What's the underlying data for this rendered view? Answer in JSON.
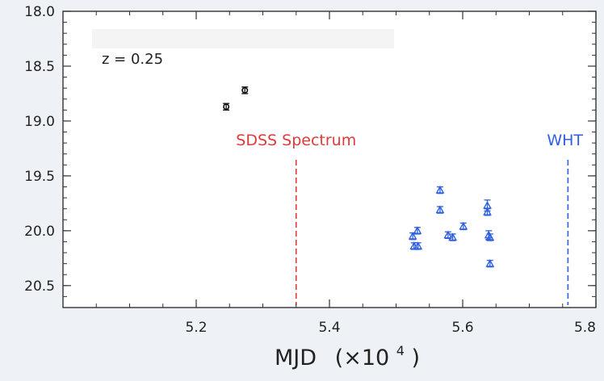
{
  "chart_data": {
    "type": "scatter",
    "title": "",
    "xlabel": "MJD (×10⁴)",
    "xlabel_main": "MJD",
    "xlabel_open": "(×10",
    "xlabel_exp": "4",
    "xlabel_close": ")",
    "ylabel": "",
    "xlim": [
      5.0,
      5.8
    ],
    "ylim": [
      20.7,
      18.0
    ],
    "y_inverted": true,
    "grid": false,
    "x_ticks": [
      5.2,
      5.4,
      5.6,
      5.8
    ],
    "x_tick_labels": [
      "5.2",
      "5.4",
      "5.6",
      "5.8"
    ],
    "y_ticks": [
      18.0,
      18.5,
      19.0,
      19.5,
      20.0,
      20.5
    ],
    "y_tick_labels": [
      "18.0",
      "18.5",
      "19.0",
      "19.5",
      "20.0",
      "20.5"
    ],
    "annotation": "z = 0.25",
    "vertical_lines": [
      {
        "x": 5.35,
        "label": "SDSS Spectrum",
        "color": "#e03a3a",
        "style": "dashed"
      },
      {
        "x": 5.758,
        "label": "WHT",
        "color": "#2e5fe0",
        "style": "dashed"
      }
    ],
    "series": [
      {
        "marker": "circle",
        "color": "#111111",
        "points": [
          {
            "x": 5.245,
            "y": 18.87,
            "err": 0.03
          },
          {
            "x": 5.273,
            "y": 18.72,
            "err": 0.03
          }
        ]
      },
      {
        "marker": "triangle",
        "color": "#2e5fe0",
        "points": [
          {
            "x": 5.525,
            "y": 20.05,
            "err": 0.03
          },
          {
            "x": 5.527,
            "y": 20.14,
            "err": 0.03
          },
          {
            "x": 5.532,
            "y": 20.0,
            "err": 0.03
          },
          {
            "x": 5.533,
            "y": 20.14,
            "err": 0.03
          },
          {
            "x": 5.566,
            "y": 19.63,
            "err": 0.03
          },
          {
            "x": 5.566,
            "y": 19.81,
            "err": 0.03
          },
          {
            "x": 5.578,
            "y": 20.04,
            "err": 0.03
          },
          {
            "x": 5.585,
            "y": 20.06,
            "err": 0.03
          },
          {
            "x": 5.601,
            "y": 19.96,
            "err": 0.03
          },
          {
            "x": 5.637,
            "y": 19.77,
            "err": 0.05
          },
          {
            "x": 5.637,
            "y": 19.83,
            "err": 0.03
          },
          {
            "x": 5.639,
            "y": 20.04,
            "err": 0.04
          },
          {
            "x": 5.641,
            "y": 20.06,
            "err": 0.03
          },
          {
            "x": 5.641,
            "y": 20.3,
            "err": 0.03
          }
        ]
      }
    ]
  },
  "colors": {
    "background": "#eef1f5",
    "axes": "#333333",
    "highlight_bar": "#f4f4f4"
  }
}
